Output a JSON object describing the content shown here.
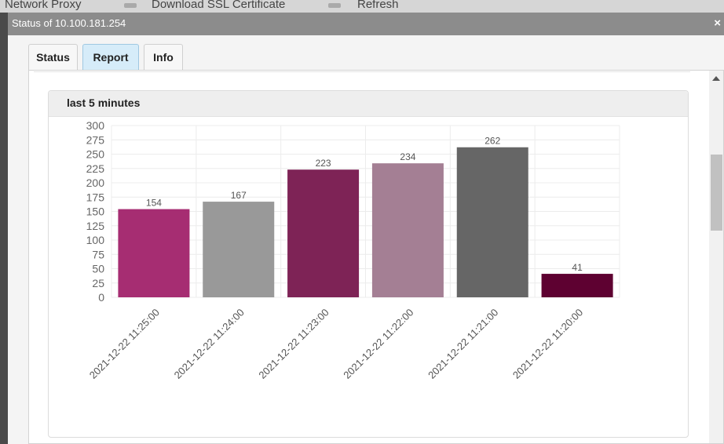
{
  "background": {
    "items": [
      "Network Proxy",
      "Download SSL Certificate",
      "Refresh"
    ]
  },
  "dialog": {
    "title": "Status of 10.100.181.254",
    "close_label": "×"
  },
  "tabs": [
    {
      "label": "Status",
      "active": false
    },
    {
      "label": "Report",
      "active": true
    },
    {
      "label": "Info",
      "active": false
    }
  ],
  "card": {
    "title": "last 5 minutes"
  },
  "chart_data": {
    "type": "bar",
    "categories": [
      "2021-12-22 11:25:00",
      "2021-12-22 11:24:00",
      "2021-12-22 11:23:00",
      "2021-12-22 11:22:00",
      "2021-12-22 11:21:00",
      "2021-12-22 11:20:00"
    ],
    "values": [
      154,
      167,
      223,
      234,
      262,
      41
    ],
    "colors": [
      "#a62d72",
      "#999999",
      "#7e2356",
      "#a47f94",
      "#666666",
      "#5e0131"
    ],
    "ylim": [
      0,
      300
    ],
    "yticks": [
      0,
      25,
      50,
      75,
      100,
      125,
      150,
      175,
      200,
      225,
      250,
      275,
      300
    ],
    "grid": true,
    "data_labels": true,
    "title": "",
    "xlabel": "",
    "ylabel": ""
  }
}
